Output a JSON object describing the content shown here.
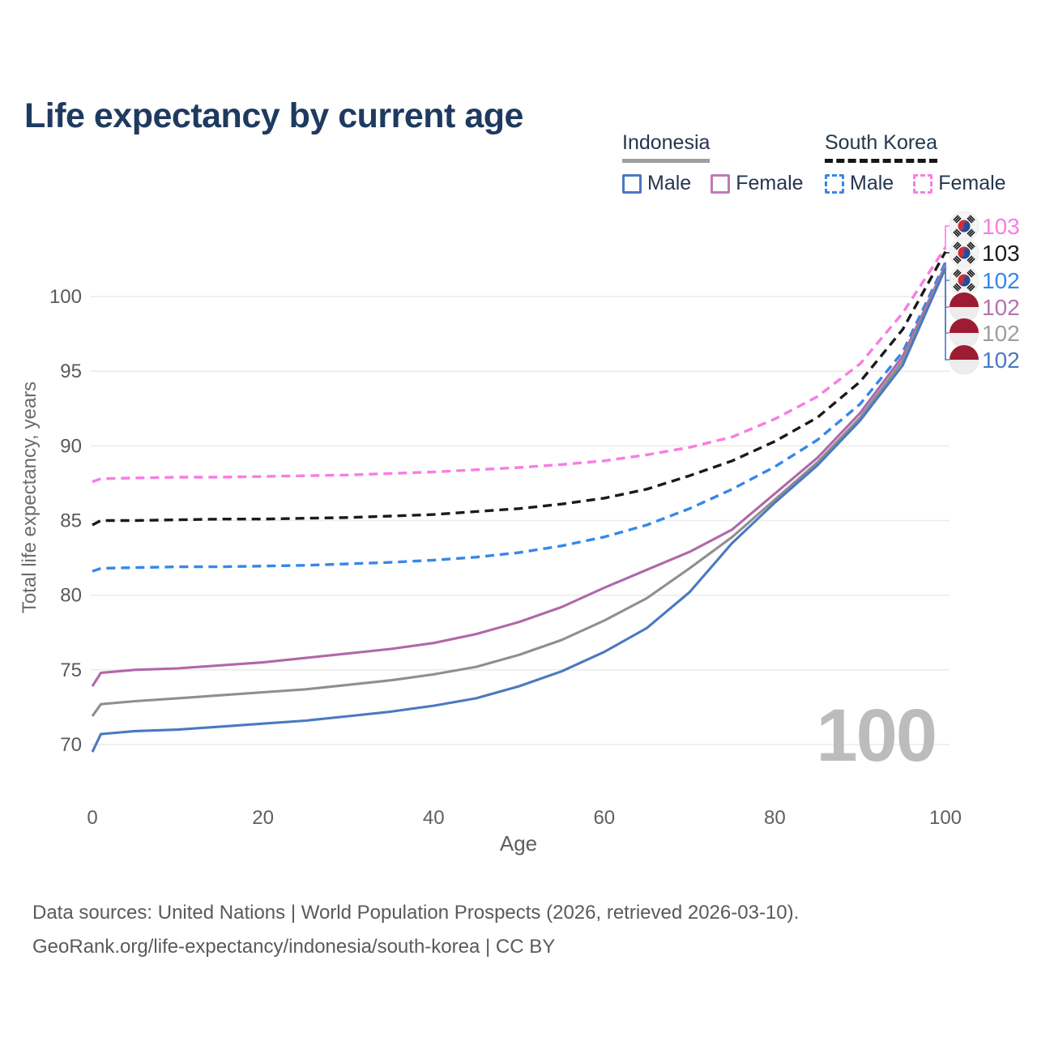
{
  "title": "Life expectancy by current age",
  "watermark": "100",
  "legend": {
    "groups": [
      {
        "label": "Indonesia",
        "underline": "solid",
        "items": [
          {
            "label": "Male",
            "color": "#4b79c1",
            "dashed": false
          },
          {
            "label": "Female",
            "color": "#bd7cb5",
            "dashed": false
          }
        ]
      },
      {
        "label": "South Korea",
        "underline": "dashed",
        "items": [
          {
            "label": "Male",
            "color": "#3787e8",
            "dashed": true
          },
          {
            "label": "Female",
            "color": "#f97ce4",
            "dashed": true
          }
        ]
      }
    ]
  },
  "chart_data": {
    "type": "line",
    "title": "Life expectancy by current age",
    "xlabel": "Age",
    "ylabel": "Total life expectancy, years",
    "xlim": [
      0,
      100
    ],
    "ylim": [
      67.5,
      104.5
    ],
    "xticks": [
      0,
      20,
      40,
      60,
      80,
      100
    ],
    "yticks": [
      70,
      75,
      80,
      85,
      90,
      95,
      100
    ],
    "grid": "horizontal",
    "legend_position": "top-right",
    "x": [
      0,
      1,
      5,
      10,
      15,
      20,
      25,
      30,
      35,
      40,
      45,
      50,
      55,
      60,
      65,
      70,
      75,
      80,
      85,
      90,
      95,
      100
    ],
    "series": [
      {
        "name": "South Korea Female",
        "country": "South Korea",
        "sex": "Female",
        "color": "#f97ce4",
        "label_color": "#f97ce4",
        "dashed": true,
        "flag": "kr",
        "end_label": "103",
        "values": [
          87.6,
          87.8,
          87.85,
          87.9,
          87.9,
          87.95,
          88.0,
          88.05,
          88.15,
          88.25,
          88.4,
          88.55,
          88.75,
          89.0,
          89.4,
          89.9,
          90.6,
          91.8,
          93.3,
          95.5,
          98.9,
          103.3
        ]
      },
      {
        "name": "South Korea Both sexes",
        "country": "South Korea",
        "sex": "Both",
        "color": "#1a1a1a",
        "label_color": "#1b1b1b",
        "dashed": true,
        "flag": "kr",
        "end_label": "103",
        "values": [
          84.7,
          85.0,
          85.0,
          85.05,
          85.1,
          85.1,
          85.15,
          85.2,
          85.3,
          85.4,
          85.6,
          85.8,
          86.1,
          86.5,
          87.1,
          88.0,
          89.0,
          90.3,
          91.9,
          94.3,
          97.8,
          103.0
        ]
      },
      {
        "name": "South Korea Male",
        "country": "South Korea",
        "sex": "Male",
        "color": "#3787e8",
        "label_color": "#3787e8",
        "dashed": true,
        "flag": "kr",
        "end_label": "102",
        "values": [
          81.6,
          81.8,
          81.85,
          81.9,
          81.9,
          81.95,
          82.0,
          82.1,
          82.2,
          82.35,
          82.55,
          82.85,
          83.3,
          83.9,
          84.7,
          85.8,
          87.1,
          88.6,
          90.4,
          92.8,
          96.3,
          102.3
        ]
      },
      {
        "name": "Indonesia Female",
        "country": "Indonesia",
        "sex": "Female",
        "color": "#b167a9",
        "label_color": "#b573ae",
        "dashed": false,
        "flag": "id",
        "end_label": "102",
        "values": [
          73.9,
          74.8,
          75.0,
          75.1,
          75.3,
          75.5,
          75.8,
          76.1,
          76.4,
          76.8,
          77.4,
          78.2,
          79.2,
          80.5,
          81.7,
          82.9,
          84.4,
          86.8,
          89.2,
          92.2,
          96.0,
          102.1
        ]
      },
      {
        "name": "Indonesia Both sexes",
        "country": "Indonesia",
        "sex": "Both",
        "color": "#8f8f8f",
        "label_color": "#9e9e9e",
        "dashed": false,
        "flag": "id",
        "end_label": "102",
        "values": [
          71.9,
          72.7,
          72.9,
          73.1,
          73.3,
          73.5,
          73.7,
          74.0,
          74.3,
          74.7,
          75.2,
          76.0,
          77.0,
          78.3,
          79.8,
          81.8,
          83.9,
          86.4,
          88.9,
          91.9,
          95.7,
          102.0
        ]
      },
      {
        "name": "Indonesia Male",
        "country": "Indonesia",
        "sex": "Male",
        "color": "#4b79c1",
        "label_color": "#4b79c1",
        "dashed": false,
        "flag": "id",
        "end_label": "102",
        "values": [
          69.5,
          70.7,
          70.9,
          71.0,
          71.2,
          71.4,
          71.6,
          71.9,
          72.2,
          72.6,
          73.1,
          73.9,
          74.9,
          76.2,
          77.8,
          80.2,
          83.5,
          86.2,
          88.7,
          91.7,
          95.4,
          101.9
        ]
      }
    ]
  },
  "footer": {
    "line1": "Data sources: United Nations | World Population Prospects (2026, retrieved 2026-03-10).",
    "line2": "GeoRank.org/life-expectancy/indonesia/south-korea | CC BY"
  }
}
